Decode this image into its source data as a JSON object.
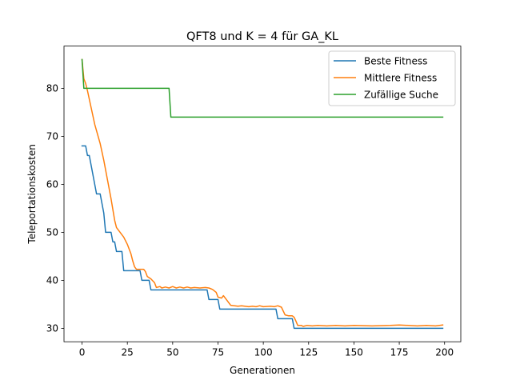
{
  "chart_data": {
    "type": "line",
    "title": "QFT8 und K = 4 für GA_KL",
    "xlabel": "Generationen",
    "ylabel": "Teleportationskosten",
    "xlim": [
      -9.95,
      208.95
    ],
    "ylim": [
      27.2,
      88.8
    ],
    "xticks": [
      0,
      25,
      50,
      75,
      100,
      125,
      150,
      175,
      200
    ],
    "yticks": [
      30,
      40,
      50,
      60,
      70,
      80
    ],
    "legend_position": "upper right",
    "grid": false,
    "series": [
      {
        "name": "Beste Fitness",
        "color": "#1f77b4",
        "points": [
          [
            0,
            68
          ],
          [
            2,
            68
          ],
          [
            3,
            66
          ],
          [
            4,
            66
          ],
          [
            5,
            64
          ],
          [
            6,
            62
          ],
          [
            7,
            60
          ],
          [
            8,
            58
          ],
          [
            10,
            58
          ],
          [
            11,
            56
          ],
          [
            12,
            54
          ],
          [
            13,
            50
          ],
          [
            16,
            50
          ],
          [
            17,
            48
          ],
          [
            18,
            48
          ],
          [
            19,
            46
          ],
          [
            22,
            46
          ],
          [
            23,
            42
          ],
          [
            32,
            42
          ],
          [
            33,
            40
          ],
          [
            37,
            40
          ],
          [
            38,
            38
          ],
          [
            69,
            38
          ],
          [
            70,
            36
          ],
          [
            75,
            36
          ],
          [
            76,
            34
          ],
          [
            107,
            34
          ],
          [
            108,
            32
          ],
          [
            116,
            32
          ],
          [
            117,
            30
          ],
          [
            199,
            30
          ]
        ]
      },
      {
        "name": "Mittlere Fitness",
        "color": "#ff7f0e",
        "points": [
          [
            0,
            86
          ],
          [
            1,
            82
          ],
          [
            2,
            81
          ],
          [
            3,
            79.5
          ],
          [
            5,
            76
          ],
          [
            7,
            72.5
          ],
          [
            10,
            68.5
          ],
          [
            12,
            65
          ],
          [
            14,
            61
          ],
          [
            16,
            57
          ],
          [
            18,
            52.5
          ],
          [
            19,
            51
          ],
          [
            21,
            50
          ],
          [
            23,
            49
          ],
          [
            25,
            47.5
          ],
          [
            27,
            45.5
          ],
          [
            28,
            44
          ],
          [
            29,
            42.8
          ],
          [
            30,
            42.3
          ],
          [
            34,
            42.3
          ],
          [
            35,
            41.8
          ],
          [
            36,
            40.8
          ],
          [
            38,
            40.3
          ],
          [
            40,
            39.5
          ],
          [
            41,
            38.5
          ],
          [
            43,
            38.7
          ],
          [
            44,
            38.4
          ],
          [
            46,
            38.6
          ],
          [
            48,
            38.4
          ],
          [
            50,
            38.7
          ],
          [
            52,
            38.4
          ],
          [
            54,
            38.6
          ],
          [
            56,
            38.4
          ],
          [
            58,
            38.6
          ],
          [
            60,
            38.4
          ],
          [
            62,
            38.5
          ],
          [
            65,
            38.4
          ],
          [
            68,
            38.5
          ],
          [
            70,
            38.4
          ],
          [
            72,
            38.1
          ],
          [
            74,
            37.5
          ],
          [
            75,
            36.5
          ],
          [
            77,
            36.3
          ],
          [
            78,
            36.8
          ],
          [
            80,
            35.8
          ],
          [
            82,
            34.8
          ],
          [
            86,
            34.6
          ],
          [
            88,
            34.7
          ],
          [
            92,
            34.5
          ],
          [
            94,
            34.6
          ],
          [
            96,
            34.5
          ],
          [
            98,
            34.7
          ],
          [
            100,
            34.5
          ],
          [
            104,
            34.6
          ],
          [
            106,
            34.5
          ],
          [
            108,
            34.7
          ],
          [
            110,
            34.4
          ],
          [
            111,
            33.6
          ],
          [
            112,
            32.8
          ],
          [
            114,
            32.6
          ],
          [
            116,
            32.6
          ],
          [
            117,
            32.3
          ],
          [
            118,
            31.5
          ],
          [
            119,
            30.6
          ],
          [
            121,
            30.6
          ],
          [
            122,
            30.4
          ],
          [
            124,
            30.6
          ],
          [
            127,
            30.5
          ],
          [
            130,
            30.6
          ],
          [
            135,
            30.5
          ],
          [
            140,
            30.6
          ],
          [
            145,
            30.5
          ],
          [
            150,
            30.6
          ],
          [
            160,
            30.5
          ],
          [
            170,
            30.6
          ],
          [
            175,
            30.7
          ],
          [
            180,
            30.6
          ],
          [
            185,
            30.5
          ],
          [
            190,
            30.6
          ],
          [
            195,
            30.5
          ],
          [
            199,
            30.7
          ]
        ]
      },
      {
        "name": "Zufällige Suche",
        "color": "#2ca02c",
        "points": [
          [
            0,
            86
          ],
          [
            1,
            80
          ],
          [
            48,
            80
          ],
          [
            49,
            74
          ],
          [
            199,
            74
          ]
        ]
      }
    ]
  }
}
